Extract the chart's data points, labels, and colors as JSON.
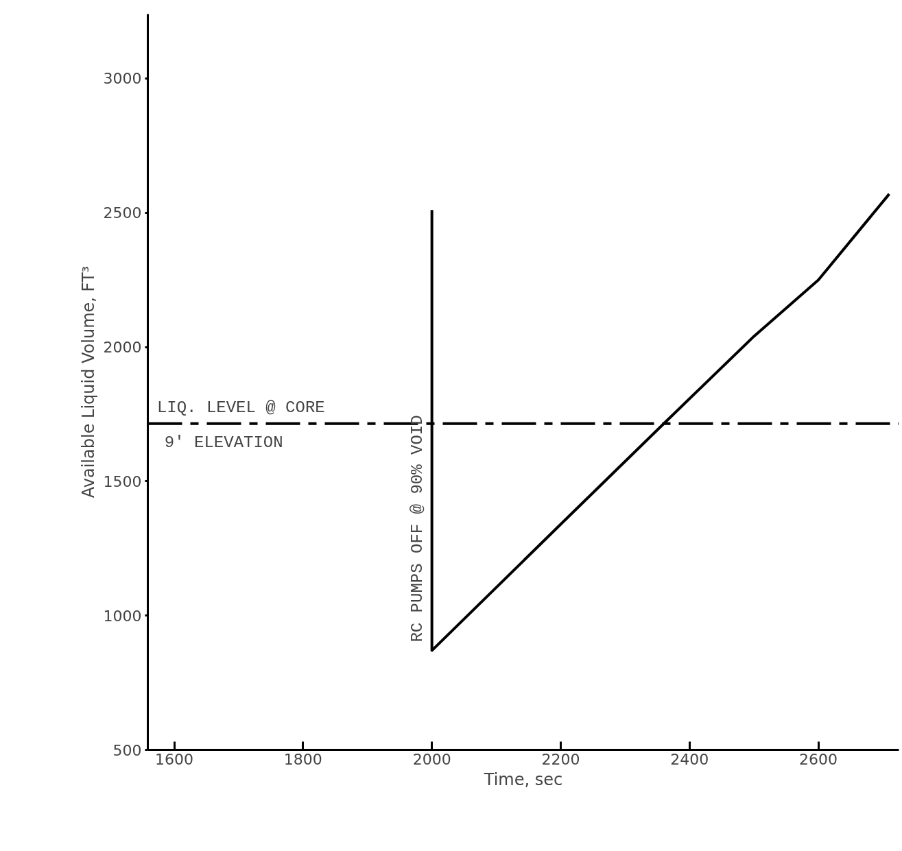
{
  "chart_data": {
    "type": "line",
    "xlabel": "Time, sec",
    "ylabel": "Available Liquid Volume, FT³",
    "x": [
      2000,
      2000,
      2100,
      2200,
      2360,
      2500,
      2600,
      2710
    ],
    "series": [
      {
        "color": "#000000",
        "values": [
          2510,
          870,
          1105,
          1340,
          1715,
          2040,
          2250,
          2570
        ]
      }
    ],
    "xlim": [
      1559,
      2725
    ],
    "ylim": [
      500,
      3240
    ],
    "xticks": [
      1600,
      1800,
      2000,
      2200,
      2400,
      2600
    ],
    "yticks": [
      500,
      1000,
      1500,
      2000,
      2500,
      3000
    ],
    "ref_lines": [
      {
        "axis": "y",
        "value": 1715,
        "label": "LIQ. LEVEL @ CORE",
        "color": "#000000",
        "line_style": "dashed"
      }
    ],
    "annotations": [
      {
        "text": "9' ELEVATION",
        "x": 1570,
        "y": 1715
      },
      {
        "text": "RC PUMPS OFF @ 90% VOID",
        "x": 2000,
        "y": 870
      }
    ],
    "grid": false,
    "marker": "none",
    "line_style": "solid"
  }
}
